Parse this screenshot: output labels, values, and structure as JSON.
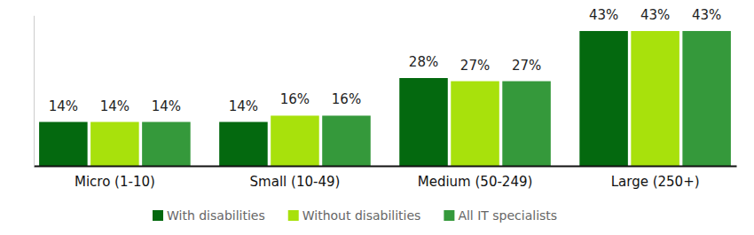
{
  "chart_data": {
    "type": "bar",
    "categories": [
      "Micro (1-10)",
      "Small (10-49)",
      "Medium (50-249)",
      "Large (250+)"
    ],
    "series": [
      {
        "name": "With disabilities",
        "color": "#04690f",
        "values": [
          14,
          14,
          28,
          43
        ],
        "value_labels": [
          "14%",
          "14%",
          "28%",
          "43%"
        ]
      },
      {
        "name": "Without disabilities",
        "color": "#a8e10c",
        "values": [
          14,
          16,
          27,
          43
        ],
        "value_labels": [
          "14%",
          "16%",
          "27%",
          "43%"
        ]
      },
      {
        "name": "All IT specialists",
        "color": "#35993b",
        "values": [
          14,
          16,
          27,
          43
        ],
        "value_labels": [
          "14%",
          "16%",
          "27%",
          "43%"
        ]
      }
    ],
    "ylim": [
      0,
      48
    ],
    "data_labels": true,
    "tick_labels": "x",
    "legend": "bottom",
    "grid": false
  }
}
